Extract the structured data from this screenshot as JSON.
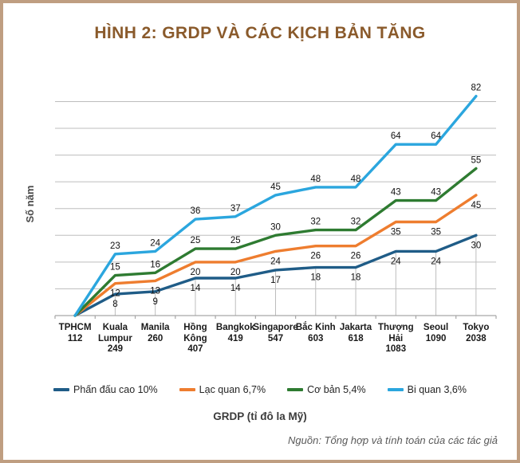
{
  "title": "HÌNH 2: GRDP VÀ CÁC KỊCH BẢN TĂNG",
  "y_axis_title": "Số năm",
  "x_axis_title": "GRDP (tỉ đô la Mỹ)",
  "source": "Nguồn: Tổng hợp và tính toán của các tác giả",
  "colors": {
    "frame_border": "#BF9E81",
    "title_text": "#8A5A2B",
    "gridline": "#BDBDBD",
    "axis_line": "#A6A6A6",
    "data_label": "#111111",
    "source_text": "#595959"
  },
  "chart_data": {
    "type": "line",
    "title": "HÌNH 2: GRDP VÀ CÁC KỊCH BẢN TĂNG",
    "xlabel": "GRDP (tỉ đô la Mỹ)",
    "ylabel": "Số năm",
    "categories": [
      "TPHCM",
      "Kuala Lumpur",
      "Manila",
      "Hồng Kông",
      "Bangkok",
      "Singapore",
      "Bắc Kinh",
      "Jakarta",
      "Thượng Hải",
      "Seoul",
      "Tokyo"
    ],
    "category_grdp_values": [
      "112",
      "249",
      "260",
      "407",
      "419",
      "547",
      "603",
      "618",
      "1083",
      "1090",
      "2038"
    ],
    "category_label_lines": [
      [
        "TPHCM"
      ],
      [
        "Kuala",
        "Lumpur"
      ],
      [
        "Manila"
      ],
      [
        "Hồng",
        "Kông"
      ],
      [
        "Bangkok"
      ],
      [
        "Singapore"
      ],
      [
        "Bắc Kinh"
      ],
      [
        "Jakarta"
      ],
      [
        "Thượng Hải"
      ],
      [
        "Seoul"
      ],
      [
        "Tokyo"
      ]
    ],
    "series": [
      {
        "name": "Phấn đấu cao 10%",
        "color": "#1F5C87",
        "label_position": "below",
        "values": [
          0,
          8,
          9,
          14,
          14,
          17,
          18,
          18,
          24,
          24,
          30
        ]
      },
      {
        "name": "Lạc quan 6,7%",
        "color": "#EE7D2F",
        "label_position": "below",
        "values": [
          0,
          12,
          13,
          20,
          20,
          24,
          26,
          26,
          35,
          35,
          45
        ]
      },
      {
        "name": "Cơ bản 5,4%",
        "color": "#2E7B31",
        "label_position": "above",
        "values": [
          0,
          15,
          16,
          25,
          25,
          30,
          32,
          32,
          43,
          43,
          55
        ]
      },
      {
        "name": "Bi quan 3,6%",
        "color": "#2BA6DE",
        "label_position": "above",
        "values": [
          0,
          23,
          24,
          36,
          37,
          45,
          48,
          48,
          64,
          64,
          82
        ]
      }
    ],
    "ylim": [
      0,
      88
    ],
    "grid": {
      "horizontal_step": 10,
      "vertical_gridlines": false,
      "drop_lines_from_lowest_series": true
    },
    "legend_position": "bottom",
    "value_axis_tick_labels_shown": false,
    "point_value_labels_shown": true
  }
}
